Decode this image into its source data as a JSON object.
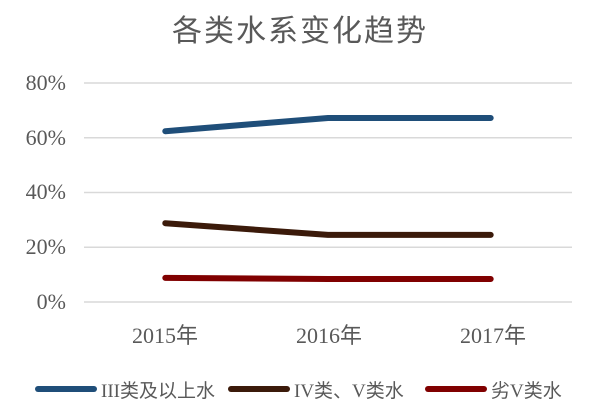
{
  "chart_data": {
    "type": "line",
    "title": "各类水系变化趋势",
    "xlabel": "",
    "ylabel": "",
    "categories": [
      "2015年",
      "2016年",
      "2017年"
    ],
    "yticks": [
      "0%",
      "20%",
      "40%",
      "60%",
      "80%"
    ],
    "ylim": [
      0,
      80
    ],
    "grid": true,
    "legend_position": "bottom",
    "series": [
      {
        "name": "III类及以上水",
        "color": "#1F4E79",
        "values": [
          62.4,
          67.2,
          67.2
        ]
      },
      {
        "name": "IV类、V类水",
        "color": "#3B1A0A",
        "values": [
          28.8,
          24.5,
          24.5
        ]
      },
      {
        "name": "劣V类水",
        "color": "#800000",
        "values": [
          8.8,
          8.4,
          8.4
        ]
      }
    ]
  }
}
